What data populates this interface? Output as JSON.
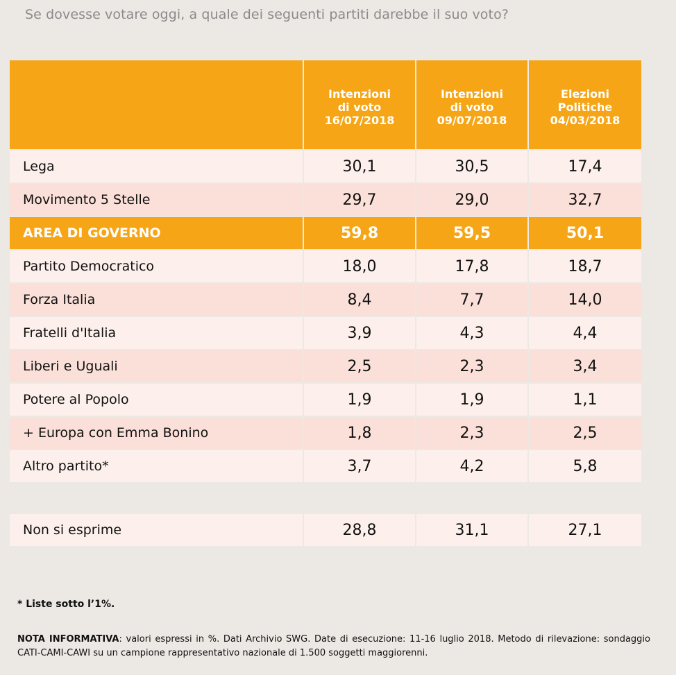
{
  "title": "Se dovesse votare oggi, a quale dei seguenti partiti darebbe il suo voto?",
  "header": {
    "col1": [
      "Intenzioni",
      "di voto",
      "16/07/2018"
    ],
    "col2": [
      "Intenzioni",
      "di voto",
      "09/07/2018"
    ],
    "col3": [
      "Elezioni",
      "Politiche",
      "04/03/2018"
    ]
  },
  "rows": [
    {
      "label": "Lega",
      "v1": "30,1",
      "v2": "30,5",
      "v3": "17,4"
    },
    {
      "label": "Movimento 5 Stelle",
      "v1": "29,7",
      "v2": "29,0",
      "v3": "32,7"
    },
    {
      "label": "AREA DI GOVERNO",
      "v1": "59,8",
      "v2": "59,5",
      "v3": "50,1"
    },
    {
      "label": "Partito Democratico",
      "v1": "18,0",
      "v2": "17,8",
      "v3": "18,7"
    },
    {
      "label": "Forza Italia",
      "v1": "8,4",
      "v2": "7,7",
      "v3": "14,0"
    },
    {
      "label": "Fratelli d'Italia",
      "v1": "3,9",
      "v2": "4,3",
      "v3": "4,4"
    },
    {
      "label": "Liberi e Uguali",
      "v1": "2,5",
      "v2": "2,3",
      "v3": "3,4"
    },
    {
      "label": "Potere al Popolo",
      "v1": "1,9",
      "v2": "1,9",
      "v3": "1,1"
    },
    {
      "label": "+ Europa con Emma Bonino",
      "v1": "1,8",
      "v2": "2,3",
      "v3": "2,5"
    },
    {
      "label": "Altro partito*",
      "v1": "3,7",
      "v2": "4,2",
      "v3": "5,8"
    }
  ],
  "non_esprime": {
    "label": "Non si esprime",
    "v1": "28,8",
    "v2": "31,1",
    "v3": "27,1"
  },
  "footnote": "* Liste sotto l’1%.",
  "nota_label": "NOTA INFORMATIVA",
  "nota_text": ": valori espressi in %. Dati Archivio SWG. Date di esecuzione: 11-16 luglio 2018. Metodo di rilevazione: sondaggio CATI-CAMI-CAWI su un campione rappresentativo nazionale di 1.500 soggetti maggiorenni.",
  "colors": {
    "accent": "#f5a516",
    "row_light": "#fdf0ec",
    "row_dark": "#fae0d8",
    "background": "#ece8e4"
  },
  "chart_data": {
    "type": "table",
    "title": "Se dovesse votare oggi, a quale dei seguenti partiti darebbe il suo voto?",
    "columns": [
      "Intenzioni di voto 16/07/2018",
      "Intenzioni di voto 09/07/2018",
      "Elezioni Politiche 04/03/2018"
    ],
    "categories": [
      "Lega",
      "Movimento 5 Stelle",
      "AREA DI GOVERNO",
      "Partito Democratico",
      "Forza Italia",
      "Fratelli d'Italia",
      "Liberi e Uguali",
      "Potere al Popolo",
      "+ Europa con Emma Bonino",
      "Altro partito*",
      "Non si esprime"
    ],
    "series": [
      {
        "name": "Intenzioni di voto 16/07/2018",
        "values": [
          30.1,
          29.7,
          59.8,
          18.0,
          8.4,
          3.9,
          2.5,
          1.9,
          1.8,
          3.7,
          28.8
        ]
      },
      {
        "name": "Intenzioni di voto 09/07/2018",
        "values": [
          30.5,
          29.0,
          59.5,
          17.8,
          7.7,
          4.3,
          2.3,
          1.9,
          2.3,
          4.2,
          31.1
        ]
      },
      {
        "name": "Elezioni Politiche 04/03/2018",
        "values": [
          17.4,
          32.7,
          50.1,
          18.7,
          14.0,
          4.4,
          3.4,
          1.1,
          2.5,
          5.8,
          27.1
        ]
      }
    ]
  }
}
